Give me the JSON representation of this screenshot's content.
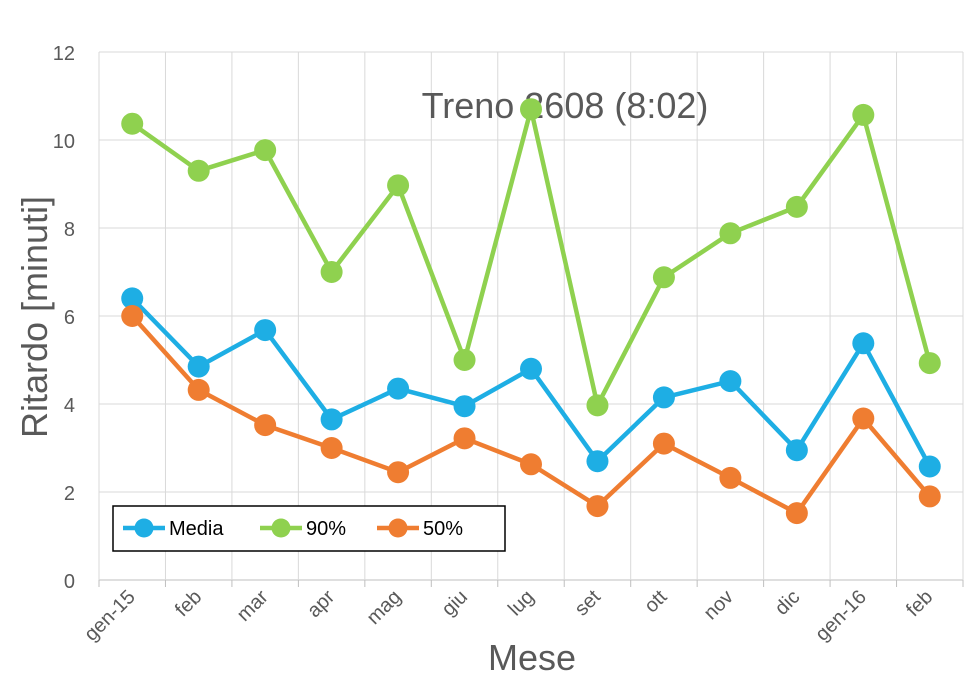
{
  "chart_data": {
    "type": "line",
    "title": "Treno 2608 (8:02)",
    "xlabel": "Mese",
    "ylabel": "Ritardo [minuti]",
    "ylim": [
      0,
      12
    ],
    "yticks": [
      0,
      2,
      4,
      6,
      8,
      10,
      12
    ],
    "grid": true,
    "legend_position": "bottom-left",
    "categories": [
      "gen-15",
      "feb",
      "mar",
      "apr",
      "mag",
      "giu",
      "lug",
      "set",
      "ott",
      "nov",
      "dic",
      "gen-16",
      "feb"
    ],
    "series": [
      {
        "name": "Media",
        "color": "#1eaee4",
        "values": [
          6.4,
          4.85,
          5.68,
          3.65,
          4.35,
          3.95,
          4.8,
          2.7,
          4.15,
          4.52,
          2.95,
          5.38,
          2.58
        ]
      },
      {
        "name": "90%",
        "color": "#8fd14f",
        "values": [
          10.37,
          9.3,
          9.77,
          7.0,
          8.97,
          5.0,
          10.7,
          3.97,
          6.88,
          7.88,
          8.48,
          10.57,
          4.93
        ]
      },
      {
        "name": "50%",
        "color": "#ef7d31",
        "values": [
          6.0,
          4.32,
          3.52,
          3.0,
          2.45,
          3.22,
          2.63,
          1.68,
          3.1,
          2.32,
          1.52,
          3.67,
          1.9
        ]
      }
    ]
  }
}
